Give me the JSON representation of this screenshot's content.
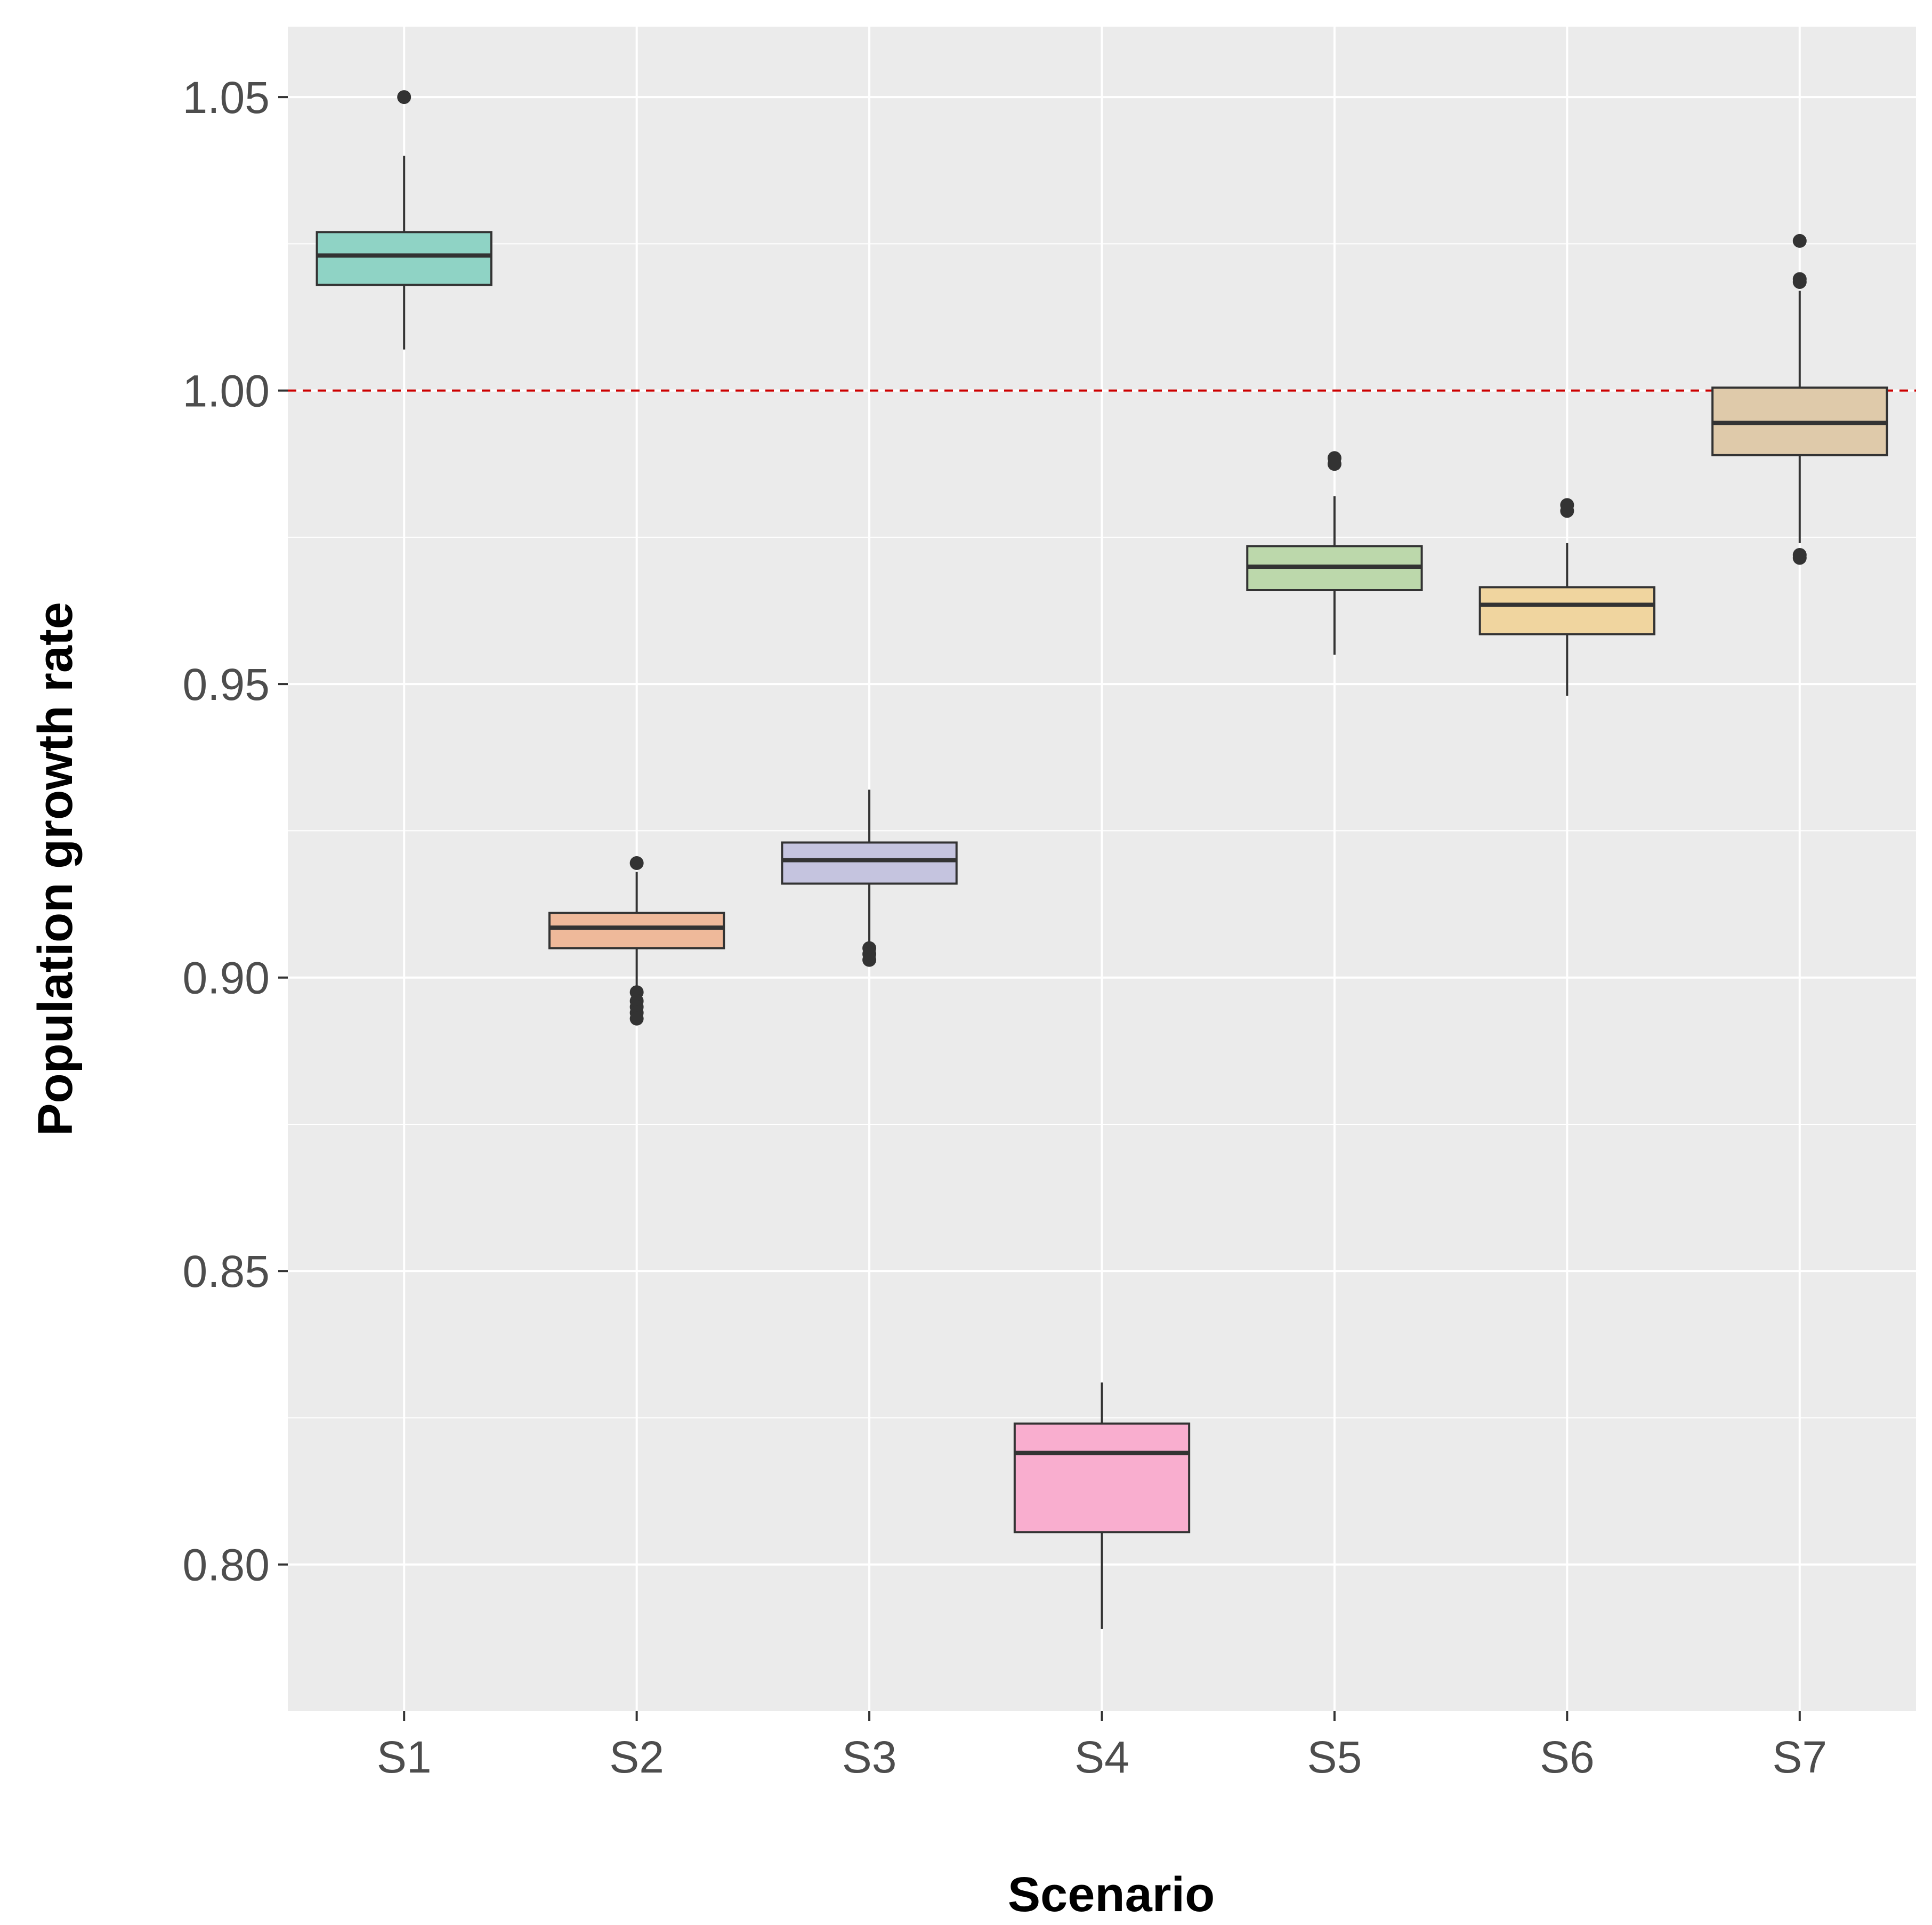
{
  "chart_data": {
    "type": "boxplot",
    "title": "",
    "xlabel": "Scenario",
    "ylabel": "Population growth rate",
    "ylim": [
      0.775,
      1.062
    ],
    "yticks": [
      0.8,
      0.85,
      0.9,
      0.95,
      1.0,
      1.05
    ],
    "ytick_labels": [
      "0.80",
      "0.85",
      "0.90",
      "0.95",
      "1.00",
      "1.05"
    ],
    "yminor": [
      0.825,
      0.875,
      0.925,
      0.975,
      1.025
    ],
    "reference_line": {
      "y": 1.0,
      "color": "#cc0000",
      "style": "dashed"
    },
    "background": "#ebebeb",
    "grid": true,
    "categories": [
      "S1",
      "S2",
      "S3",
      "S4",
      "S5",
      "S6",
      "S7"
    ],
    "boxes": [
      {
        "name": "S1",
        "lower_whisker": 1.007,
        "q1": 1.018,
        "median": 1.023,
        "q3": 1.027,
        "upper_whisker": 1.04,
        "outliers": [
          1.05
        ],
        "fill": "#8fd3c5"
      },
      {
        "name": "S2",
        "lower_whisker": 0.898,
        "q1": 0.905,
        "median": 0.9085,
        "q3": 0.911,
        "upper_whisker": 0.918,
        "outliers": [
          0.9195,
          0.8975,
          0.896,
          0.895,
          0.894,
          0.893
        ],
        "fill": "#efb99a"
      },
      {
        "name": "S3",
        "lower_whisker": 0.906,
        "q1": 0.916,
        "median": 0.92,
        "q3": 0.923,
        "upper_whisker": 0.932,
        "outliers": [
          0.905,
          0.904,
          0.903
        ],
        "fill": "#c5c4df"
      },
      {
        "name": "S4",
        "lower_whisker": 0.789,
        "q1": 0.8055,
        "median": 0.819,
        "q3": 0.824,
        "upper_whisker": 0.831,
        "outliers": [],
        "fill": "#f9aecf"
      },
      {
        "name": "S5",
        "lower_whisker": 0.955,
        "q1": 0.966,
        "median": 0.97,
        "q3": 0.9735,
        "upper_whisker": 0.982,
        "outliers": [
          0.9885,
          0.9875
        ],
        "fill": "#bcd8ab"
      },
      {
        "name": "S6",
        "lower_whisker": 0.948,
        "q1": 0.9585,
        "median": 0.9635,
        "q3": 0.9665,
        "upper_whisker": 0.974,
        "outliers": [
          0.9805,
          0.9795
        ],
        "fill": "#f0d59f"
      },
      {
        "name": "S7",
        "lower_whisker": 0.974,
        "q1": 0.989,
        "median": 0.9945,
        "q3": 1.0005,
        "upper_whisker": 1.017,
        "outliers": [
          1.0255,
          1.019,
          1.0185,
          0.972,
          0.9715
        ],
        "fill": "#dfcaaa"
      }
    ]
  }
}
